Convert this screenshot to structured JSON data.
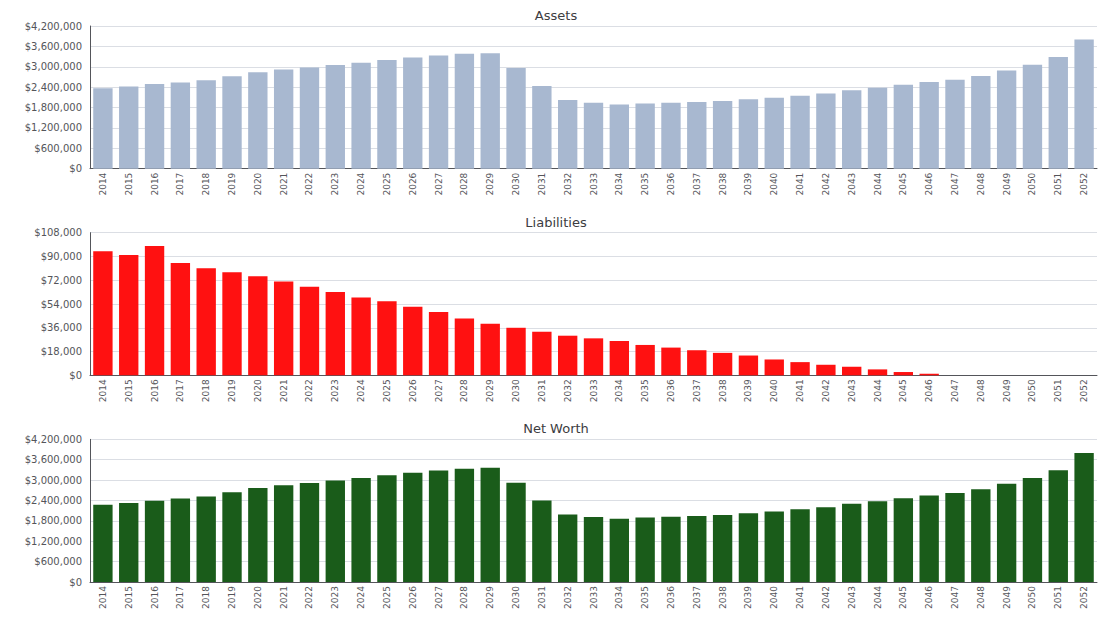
{
  "chart_data": [
    {
      "type": "bar",
      "title": "Assets",
      "categories": [
        "2014",
        "2015",
        "2016",
        "2017",
        "2018",
        "2019",
        "2020",
        "2021",
        "2022",
        "2023",
        "2024",
        "2025",
        "2026",
        "2027",
        "2028",
        "2029",
        "2030",
        "2031",
        "2032",
        "2033",
        "2034",
        "2035",
        "2036",
        "2037",
        "2038",
        "2039",
        "2040",
        "2041",
        "2042",
        "2043",
        "2044",
        "2045",
        "2046",
        "2047",
        "2048",
        "2049",
        "2050",
        "2051",
        "2052"
      ],
      "values": [
        2370000,
        2420000,
        2490000,
        2540000,
        2600000,
        2720000,
        2840000,
        2920000,
        2980000,
        3050000,
        3120000,
        3200000,
        3270000,
        3330000,
        3380000,
        3400000,
        2960000,
        2430000,
        2020000,
        1940000,
        1890000,
        1920000,
        1940000,
        1960000,
        1990000,
        2040000,
        2090000,
        2150000,
        2210000,
        2310000,
        2380000,
        2470000,
        2550000,
        2620000,
        2730000,
        2890000,
        3060000,
        3290000,
        3800000
      ],
      "color": "#a8b8d0",
      "ylim": [
        0,
        4200000
      ],
      "yticks": [
        {
          "value": 0,
          "label": "$0"
        },
        {
          "value": 600000,
          "label": "$600,000"
        },
        {
          "value": 1200000,
          "label": "$1,200,000"
        },
        {
          "value": 1800000,
          "label": "$1,800,000"
        },
        {
          "value": 2400000,
          "label": "$2,400,000"
        },
        {
          "value": 3000000,
          "label": "$3,000,000"
        },
        {
          "value": 3600000,
          "label": "$3,600,000"
        },
        {
          "value": 4200000,
          "label": "$4,200,000"
        }
      ],
      "grid": true
    },
    {
      "type": "bar",
      "title": "Liabilities",
      "categories": [
        "2014",
        "2015",
        "2016",
        "2017",
        "2018",
        "2019",
        "2020",
        "2021",
        "2022",
        "2023",
        "2024",
        "2025",
        "2026",
        "2027",
        "2028",
        "2029",
        "2030",
        "2031",
        "2032",
        "2033",
        "2034",
        "2035",
        "2036",
        "2037",
        "2038",
        "2039",
        "2040",
        "2041",
        "2042",
        "2043",
        "2044",
        "2045",
        "2046",
        "2047",
        "2048",
        "2049",
        "2050",
        "2051",
        "2052"
      ],
      "values": [
        94000,
        91000,
        98000,
        85000,
        81000,
        78000,
        75000,
        71000,
        67000,
        63000,
        59000,
        56000,
        52000,
        48000,
        43000,
        39000,
        36000,
        33000,
        30000,
        28000,
        26000,
        23000,
        21000,
        19000,
        17000,
        15000,
        12000,
        10000,
        8000,
        6500,
        4500,
        2500,
        1200,
        0,
        0,
        0,
        0,
        0,
        0
      ],
      "color": "#ff1111",
      "ylim": [
        0,
        108000
      ],
      "yticks": [
        {
          "value": 0,
          "label": "$0"
        },
        {
          "value": 18000,
          "label": "$18,000"
        },
        {
          "value": 36000,
          "label": "$36,000"
        },
        {
          "value": 54000,
          "label": "$54,000"
        },
        {
          "value": 72000,
          "label": "$72,000"
        },
        {
          "value": 90000,
          "label": "$90,000"
        },
        {
          "value": 108000,
          "label": "$108,000"
        }
      ],
      "grid": true
    },
    {
      "type": "bar",
      "title": "Net Worth",
      "categories": [
        "2014",
        "2015",
        "2016",
        "2017",
        "2018",
        "2019",
        "2020",
        "2021",
        "2022",
        "2023",
        "2024",
        "2025",
        "2026",
        "2027",
        "2028",
        "2029",
        "2030",
        "2031",
        "2032",
        "2033",
        "2034",
        "2035",
        "2036",
        "2037",
        "2038",
        "2039",
        "2040",
        "2041",
        "2042",
        "2043",
        "2044",
        "2045",
        "2046",
        "2047",
        "2048",
        "2049",
        "2050",
        "2051",
        "2052"
      ],
      "values": [
        2276000,
        2329000,
        2392000,
        2455000,
        2519000,
        2642000,
        2765000,
        2849000,
        2913000,
        2987000,
        3061000,
        3144000,
        3218000,
        3282000,
        3337000,
        3361000,
        2924000,
        2397000,
        1990000,
        1912000,
        1864000,
        1897000,
        1919000,
        1941000,
        1973000,
        2025000,
        2078000,
        2140000,
        2202000,
        2303500,
        2375500,
        2467500,
        2548800,
        2620000,
        2730000,
        2890000,
        3060000,
        3290000,
        3800000
      ],
      "color": "#1a5c1a",
      "ylim": [
        0,
        4200000
      ],
      "yticks": [
        {
          "value": 0,
          "label": "$0"
        },
        {
          "value": 600000,
          "label": "$600,000"
        },
        {
          "value": 1200000,
          "label": "$1,200,000"
        },
        {
          "value": 1800000,
          "label": "$1,800,000"
        },
        {
          "value": 2400000,
          "label": "$2,400,000"
        },
        {
          "value": 3000000,
          "label": "$3,000,000"
        },
        {
          "value": 3600000,
          "label": "$3,600,000"
        },
        {
          "value": 4200000,
          "label": "$4,200,000"
        }
      ],
      "grid": true
    }
  ]
}
